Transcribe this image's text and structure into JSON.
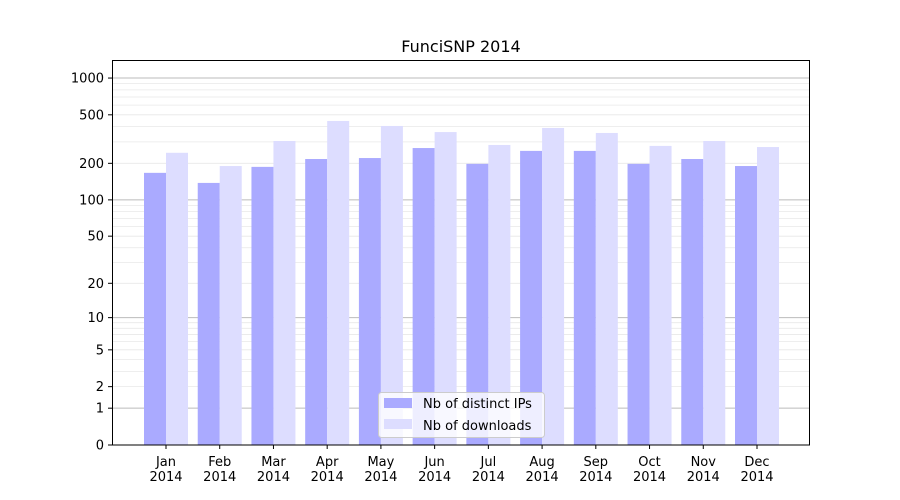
{
  "chart_data": {
    "type": "bar",
    "title": "FunciSNP 2014",
    "xlabel": "",
    "ylabel": "",
    "yscale": "symlog",
    "ylim": [
      0,
      1300
    ],
    "yticks": [
      0,
      1,
      2,
      5,
      10,
      20,
      50,
      100,
      200,
      500,
      1000
    ],
    "grid": true,
    "legend_position": "bottom-center",
    "categories": [
      "Jan\n2014",
      "Feb\n2014",
      "Mar\n2014",
      "Apr\n2014",
      "May\n2014",
      "Jun\n2014",
      "Jul\n2014",
      "Aug\n2014",
      "Sep\n2014",
      "Oct\n2014",
      "Nov\n2014",
      "Dec\n2014"
    ],
    "series": [
      {
        "name": "Nb of distinct IPs",
        "color": "#aaaaff",
        "values": [
          167,
          138,
          187,
          217,
          221,
          267,
          198,
          253,
          253,
          198,
          217,
          190
        ]
      },
      {
        "name": "Nb of downloads",
        "color": "#ddddff",
        "values": [
          244,
          190,
          305,
          445,
          405,
          361,
          283,
          390,
          355,
          278,
          305,
          272
        ]
      }
    ]
  }
}
